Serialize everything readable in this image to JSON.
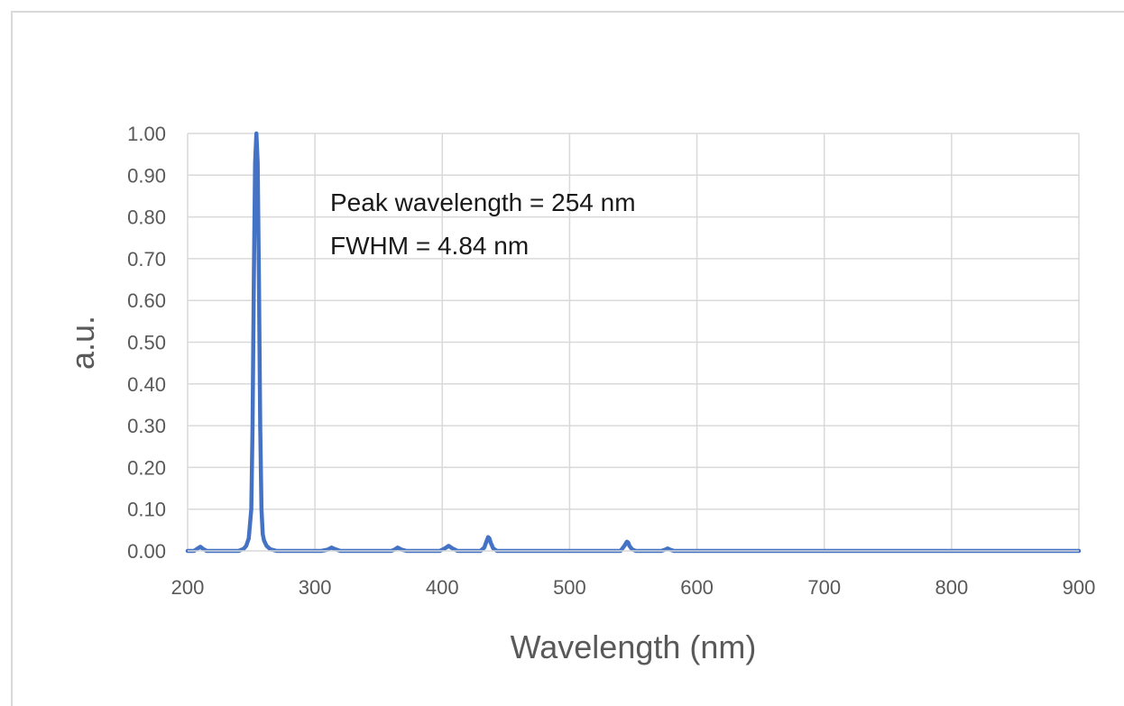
{
  "chart_data": {
    "type": "line",
    "title": "",
    "xlabel": "Wavelength (nm)",
    "ylabel": "a.u.",
    "xlim": [
      200,
      900
    ],
    "ylim": [
      0,
      1.0
    ],
    "x_ticks": [
      "200",
      "300",
      "400",
      "500",
      "600",
      "700",
      "800",
      "900"
    ],
    "y_ticks": [
      "0.00",
      "0.10",
      "0.20",
      "0.30",
      "0.40",
      "0.50",
      "0.60",
      "0.70",
      "0.80",
      "0.90",
      "1.00"
    ],
    "grid": true,
    "legend": "none",
    "series_color": "#4472c4",
    "annotations": [
      "Peak wavelength = 254 nm",
      "FWHM = 4.84 nm"
    ],
    "series": [
      {
        "x": [
          200,
          205,
          208,
          210,
          212,
          215,
          240,
          244,
          246,
          248,
          250,
          251,
          252,
          253,
          254,
          255,
          256,
          257,
          258,
          259,
          260,
          262,
          265,
          270,
          305,
          310,
          313,
          316,
          320,
          360,
          363,
          365,
          368,
          372,
          398,
          402,
          405,
          408,
          412,
          430,
          433,
          435,
          436,
          437,
          438,
          440,
          443,
          500,
          540,
          543,
          545,
          546,
          547,
          549,
          552,
          572,
          575,
          577,
          579,
          582,
          900
        ],
        "y": [
          0.0,
          0.0,
          0.006,
          0.01,
          0.005,
          0.0,
          0.0,
          0.005,
          0.012,
          0.03,
          0.1,
          0.3,
          0.65,
          0.93,
          1.0,
          0.93,
          0.65,
          0.3,
          0.1,
          0.04,
          0.025,
          0.012,
          0.004,
          0.0,
          0.0,
          0.003,
          0.008,
          0.004,
          0.0,
          0.0,
          0.004,
          0.008,
          0.003,
          0.0,
          0.0,
          0.006,
          0.012,
          0.006,
          0.0,
          0.0,
          0.008,
          0.025,
          0.033,
          0.03,
          0.02,
          0.006,
          0.0,
          0.0,
          0.0,
          0.012,
          0.022,
          0.02,
          0.012,
          0.004,
          0.0,
          0.0,
          0.003,
          0.006,
          0.003,
          0.0,
          0.0
        ]
      }
    ]
  }
}
